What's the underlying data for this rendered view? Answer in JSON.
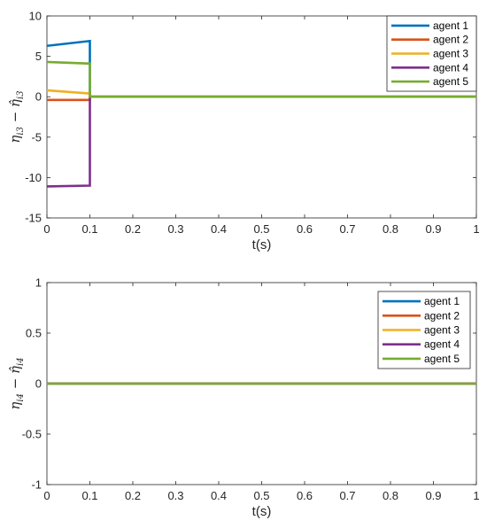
{
  "chart_data": [
    {
      "type": "line",
      "xlabel": "t(s)",
      "ylabel_base": "η",
      "ylabel_sub": "i3",
      "ylabel_hat_sub": "i3",
      "xlim": [
        0,
        1
      ],
      "ylim": [
        -15,
        10
      ],
      "xticks": [
        0,
        0.1,
        0.2,
        0.3,
        0.4,
        0.5,
        0.6,
        0.7,
        0.8,
        0.9,
        1
      ],
      "xtick_labels": [
        "0",
        "0.1",
        "0.2",
        "0.3",
        "0.4",
        "0.5",
        "0.6",
        "0.7",
        "0.8",
        "0.9",
        "1"
      ],
      "yticks": [
        -15,
        -10,
        -5,
        0,
        5,
        10
      ],
      "ytick_labels": [
        "-15",
        "-10",
        "-5",
        "0",
        "5",
        "10"
      ],
      "legend_position": "top-right",
      "series": [
        {
          "name": "agent 1",
          "color": "#0072BD",
          "x": [
            0,
            0.1,
            0.1,
            1
          ],
          "y": [
            6.3,
            6.9,
            0,
            0
          ]
        },
        {
          "name": "agent 2",
          "color": "#D95319",
          "x": [
            0,
            0.1,
            0.1,
            1
          ],
          "y": [
            -0.4,
            -0.4,
            0,
            0
          ]
        },
        {
          "name": "agent 3",
          "color": "#EDB120",
          "x": [
            0,
            0.1,
            0.1,
            1
          ],
          "y": [
            0.8,
            0.4,
            0,
            0
          ]
        },
        {
          "name": "agent 4",
          "color": "#7E2F8E",
          "x": [
            0,
            0.1,
            0.1,
            1
          ],
          "y": [
            -11.1,
            -11.0,
            0,
            0
          ]
        },
        {
          "name": "agent 5",
          "color": "#77AC30",
          "x": [
            0,
            0.1,
            0.1,
            1
          ],
          "y": [
            4.3,
            4.1,
            0,
            0
          ]
        }
      ]
    },
    {
      "type": "line",
      "xlabel": "t(s)",
      "ylabel_base": "η",
      "ylabel_sub": "i4",
      "ylabel_hat_sub": "i4",
      "xlim": [
        0,
        1
      ],
      "ylim": [
        -1,
        1
      ],
      "xticks": [
        0,
        0.1,
        0.2,
        0.3,
        0.4,
        0.5,
        0.6,
        0.7,
        0.8,
        0.9,
        1
      ],
      "xtick_labels": [
        "0",
        "0.1",
        "0.2",
        "0.3",
        "0.4",
        "0.5",
        "0.6",
        "0.7",
        "0.8",
        "0.9",
        "1"
      ],
      "yticks": [
        -1,
        -0.5,
        0,
        0.5,
        1
      ],
      "ytick_labels": [
        "-1",
        "-0.5",
        "0",
        "0.5",
        "1"
      ],
      "legend_position": "top-right",
      "series": [
        {
          "name": "agent 1",
          "color": "#0072BD",
          "x": [
            0,
            1
          ],
          "y": [
            0,
            0
          ]
        },
        {
          "name": "agent 2",
          "color": "#D95319",
          "x": [
            0,
            1
          ],
          "y": [
            0,
            0
          ]
        },
        {
          "name": "agent 3",
          "color": "#EDB120",
          "x": [
            0,
            1
          ],
          "y": [
            0,
            0
          ]
        },
        {
          "name": "agent 4",
          "color": "#7E2F8E",
          "x": [
            0,
            1
          ],
          "y": [
            0,
            0
          ]
        },
        {
          "name": "agent 5",
          "color": "#77AC30",
          "x": [
            0,
            1
          ],
          "y": [
            0,
            0
          ]
        }
      ]
    }
  ]
}
